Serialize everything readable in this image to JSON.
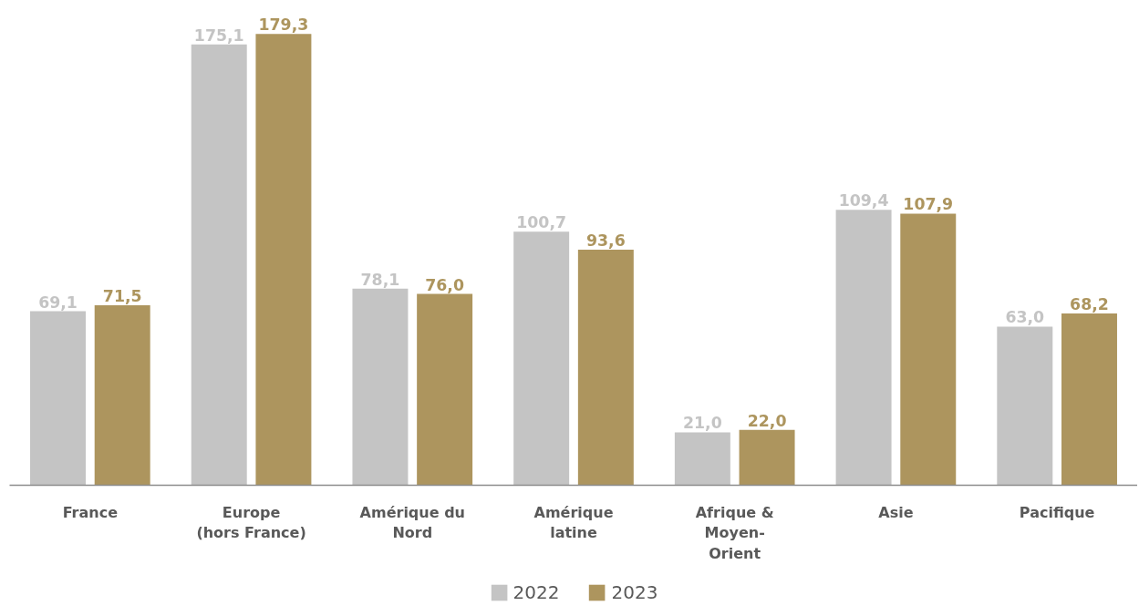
{
  "chart_data": {
    "type": "bar",
    "categories": [
      "France",
      "Europe\n(hors France)",
      "Amérique du\nNord",
      "Amérique\nlatine",
      "Afrique &\nMoyen-\nOrient",
      "Asie",
      "Pacifique"
    ],
    "series": [
      {
        "name": "2022",
        "color": "#c4c4c4",
        "values": [
          69.1,
          175.1,
          78.1,
          100.7,
          21.0,
          109.4,
          63.0
        ],
        "value_labels": [
          "69,1",
          "175,1",
          "78,1",
          "100,7",
          "21,0",
          "109,4",
          "63,0"
        ]
      },
      {
        "name": "2023",
        "color": "#ad955e",
        "values": [
          71.5,
          179.3,
          76.0,
          93.6,
          22.0,
          107.9,
          68.2
        ],
        "value_labels": [
          "71,5",
          "179,3",
          "76,0",
          "93,6",
          "22,0",
          "107,9",
          "68,2"
        ]
      }
    ],
    "grid": false,
    "legend": "bottom",
    "tick_labels": "x"
  }
}
